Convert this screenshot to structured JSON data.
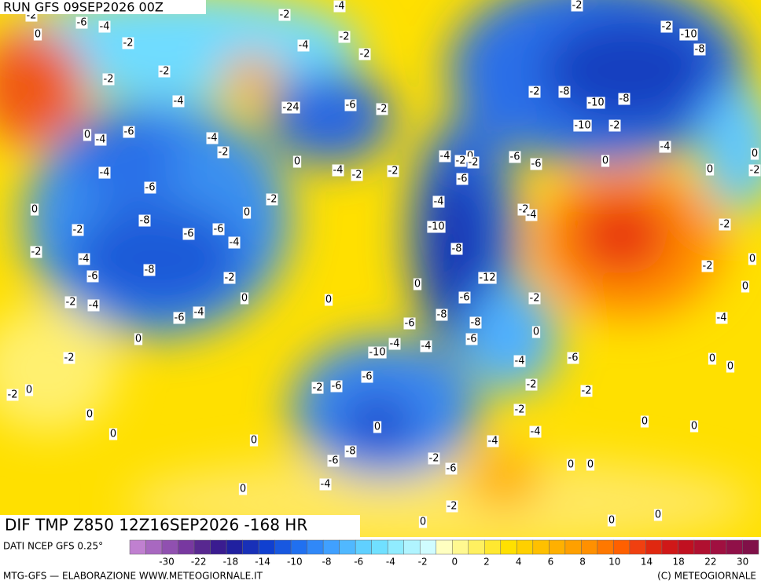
{
  "header": {
    "run": "RUN GFS 09SEP2026 00Z"
  },
  "map": {
    "title": "DIF TMP Z850 12Z16SEP2026 -168 HR",
    "contour_labels": [
      -2,
      -6,
      -4,
      0,
      -2,
      -2,
      -4,
      -2,
      -4,
      -2,
      -2,
      -2,
      -4,
      -24,
      -6,
      -2,
      -6,
      -4,
      0,
      -4,
      -2,
      0,
      -4,
      -2,
      -2,
      -4,
      -6,
      -2,
      0,
      0,
      -8,
      -6,
      -6,
      -4,
      -2,
      -2,
      -4,
      -6,
      -8,
      -2,
      0,
      -2,
      -4,
      -6,
      -4,
      0,
      -2,
      -2,
      0,
      0,
      0,
      0,
      0,
      0,
      0,
      -2,
      -6,
      -4,
      -10,
      -8,
      -12,
      -6,
      -8,
      -8,
      -6,
      -6,
      -4,
      -10,
      -4,
      -6,
      -6,
      -2,
      0,
      -8,
      -6,
      -4,
      -2,
      -6,
      -4,
      -2,
      0,
      -2,
      -8,
      -10,
      -8,
      -10,
      -2,
      -4,
      -6,
      -6,
      0,
      0,
      -2,
      -10,
      -8,
      -2,
      -2,
      -4,
      -2,
      0,
      -2,
      0,
      -4,
      -2,
      0,
      -4,
      -6,
      0,
      0,
      -2,
      -2,
      -2,
      -4,
      0,
      0,
      0,
      0,
      0,
      0,
      0,
      -2,
      -4,
      0,
      -2,
      -2
    ]
  },
  "colorbar": {
    "source": "DATI NCEP GFS 0.25°",
    "ticks": [
      -30,
      -22,
      -18,
      -14,
      -10,
      -8,
      -6,
      -4,
      -2,
      0,
      2,
      4,
      6,
      8,
      10,
      14,
      18,
      22,
      30
    ],
    "colors": [
      "#c080d0",
      "#a868c0",
      "#9050b0",
      "#7838a0",
      "#582890",
      "#3a1c90",
      "#2020a0",
      "#1830b8",
      "#1040d0",
      "#1858e0",
      "#2070f0",
      "#3088f8",
      "#40a0ff",
      "#50b8ff",
      "#60d0ff",
      "#70e0ff",
      "#90ecff",
      "#b0f4ff",
      "#d0fcff",
      "#ffffc0",
      "#fff890",
      "#fff060",
      "#ffe830",
      "#ffe000",
      "#ffd000",
      "#ffc000",
      "#ffb000",
      "#ffa000",
      "#ff9000",
      "#ff7800",
      "#ff6000",
      "#f04010",
      "#e02810",
      "#d01818",
      "#c01020",
      "#b01030",
      "#a01040",
      "#901048",
      "#801048"
    ]
  },
  "footer": {
    "left": "MTG-GFS — ELABORAZIONE WWW.METEOGIORNALE.IT",
    "right": "(C) METEOGIORNALE"
  }
}
